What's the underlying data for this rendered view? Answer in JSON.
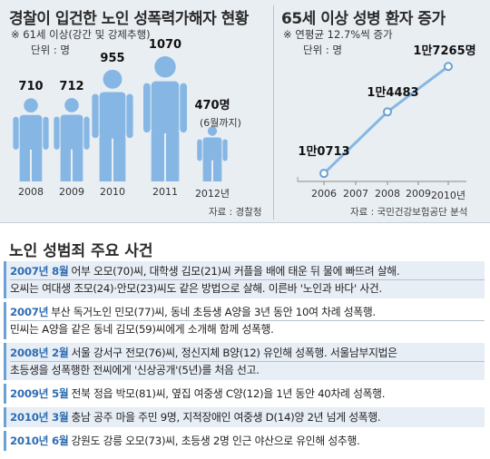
{
  "left_panel": {
    "title": "경찰이 입건한 노인 성폭력가해자 현황",
    "note": "※ 61세 이상(강간 및 강제추행)",
    "unit": "단위 : 명",
    "source": "자료 : 경찰청"
  },
  "right_panel": {
    "title": "65세 이상 성병 환자 증가",
    "note": "※ 연평균 12.7%씩 증가",
    "unit": "단위 : 명",
    "source": "자료 : 국민건강보험공단 분석"
  },
  "chart_data": [
    {
      "type": "bar",
      "categories": [
        "2008",
        "2009",
        "2010",
        "2011",
        "2012년"
      ],
      "values": [
        710,
        712,
        955,
        1070,
        470
      ],
      "value_labels": [
        "710",
        "712",
        "955",
        "1070",
        "470명"
      ],
      "annotation": "(6월까지)",
      "title": "경찰이 입건한 노인 성폭력가해자 현황"
    },
    {
      "type": "line",
      "x": [
        "2006",
        "2007",
        "2008",
        "2009",
        "2010년"
      ],
      "points": [
        {
          "x": "2006",
          "y": 10713,
          "label": "1만0713"
        },
        {
          "x": "2008",
          "y": 14483,
          "label": "1만4483"
        },
        {
          "x": "2010년",
          "y": 17265,
          "label": "1만7265명"
        }
      ],
      "title": "65세 이상 성병 환자 증가"
    }
  ],
  "events": {
    "title": "노인 성범죄 주요 사건",
    "items": [
      {
        "date": "2007년 8월",
        "lines": [
          "어부 오모(70)씨, 대학생 김모(21)씨 커플을 배에 태운 뒤 물에 빠뜨려 살해.",
          "오씨는 여대생 조모(24)·안모(23)씨도 같은 방법으로 살해. 이른바 '노인과 바다' 사건."
        ]
      },
      {
        "date": "2007년",
        "lines": [
          "부산 독거노인 민모(77)씨, 동네 초등생 A양을 3년 동안 10여 차례 성폭행.",
          "민씨는 A양을 같은 동네 김모(59)씨에게 소개해 함께 성폭행."
        ]
      },
      {
        "date": "2008년 2월",
        "lines": [
          "서울 강서구 전모(76)씨, 정신지체 B양(12) 유인해 성폭행. 서울남부지법은",
          "초등생을 성폭행한 전씨에게 '신상공개'(5년)를 처음 선고."
        ]
      },
      {
        "date": "2009년 5월",
        "lines": [
          "전북 정읍 박모(81)씨, 옆집 여중생 C양(12)을 1년 동안 40차례 성폭행."
        ]
      },
      {
        "date": "2010년 3월",
        "lines": [
          "충남 공주 마을 주민 9명, 지적장애인 여중생 D(14)양 2년 넘게 성폭행."
        ]
      },
      {
        "date": "2010년 6월",
        "lines": [
          "강원도 강릉 오모(73)씨, 초등생 2명 인근 야산으로 유인해 성추행."
        ]
      }
    ]
  }
}
